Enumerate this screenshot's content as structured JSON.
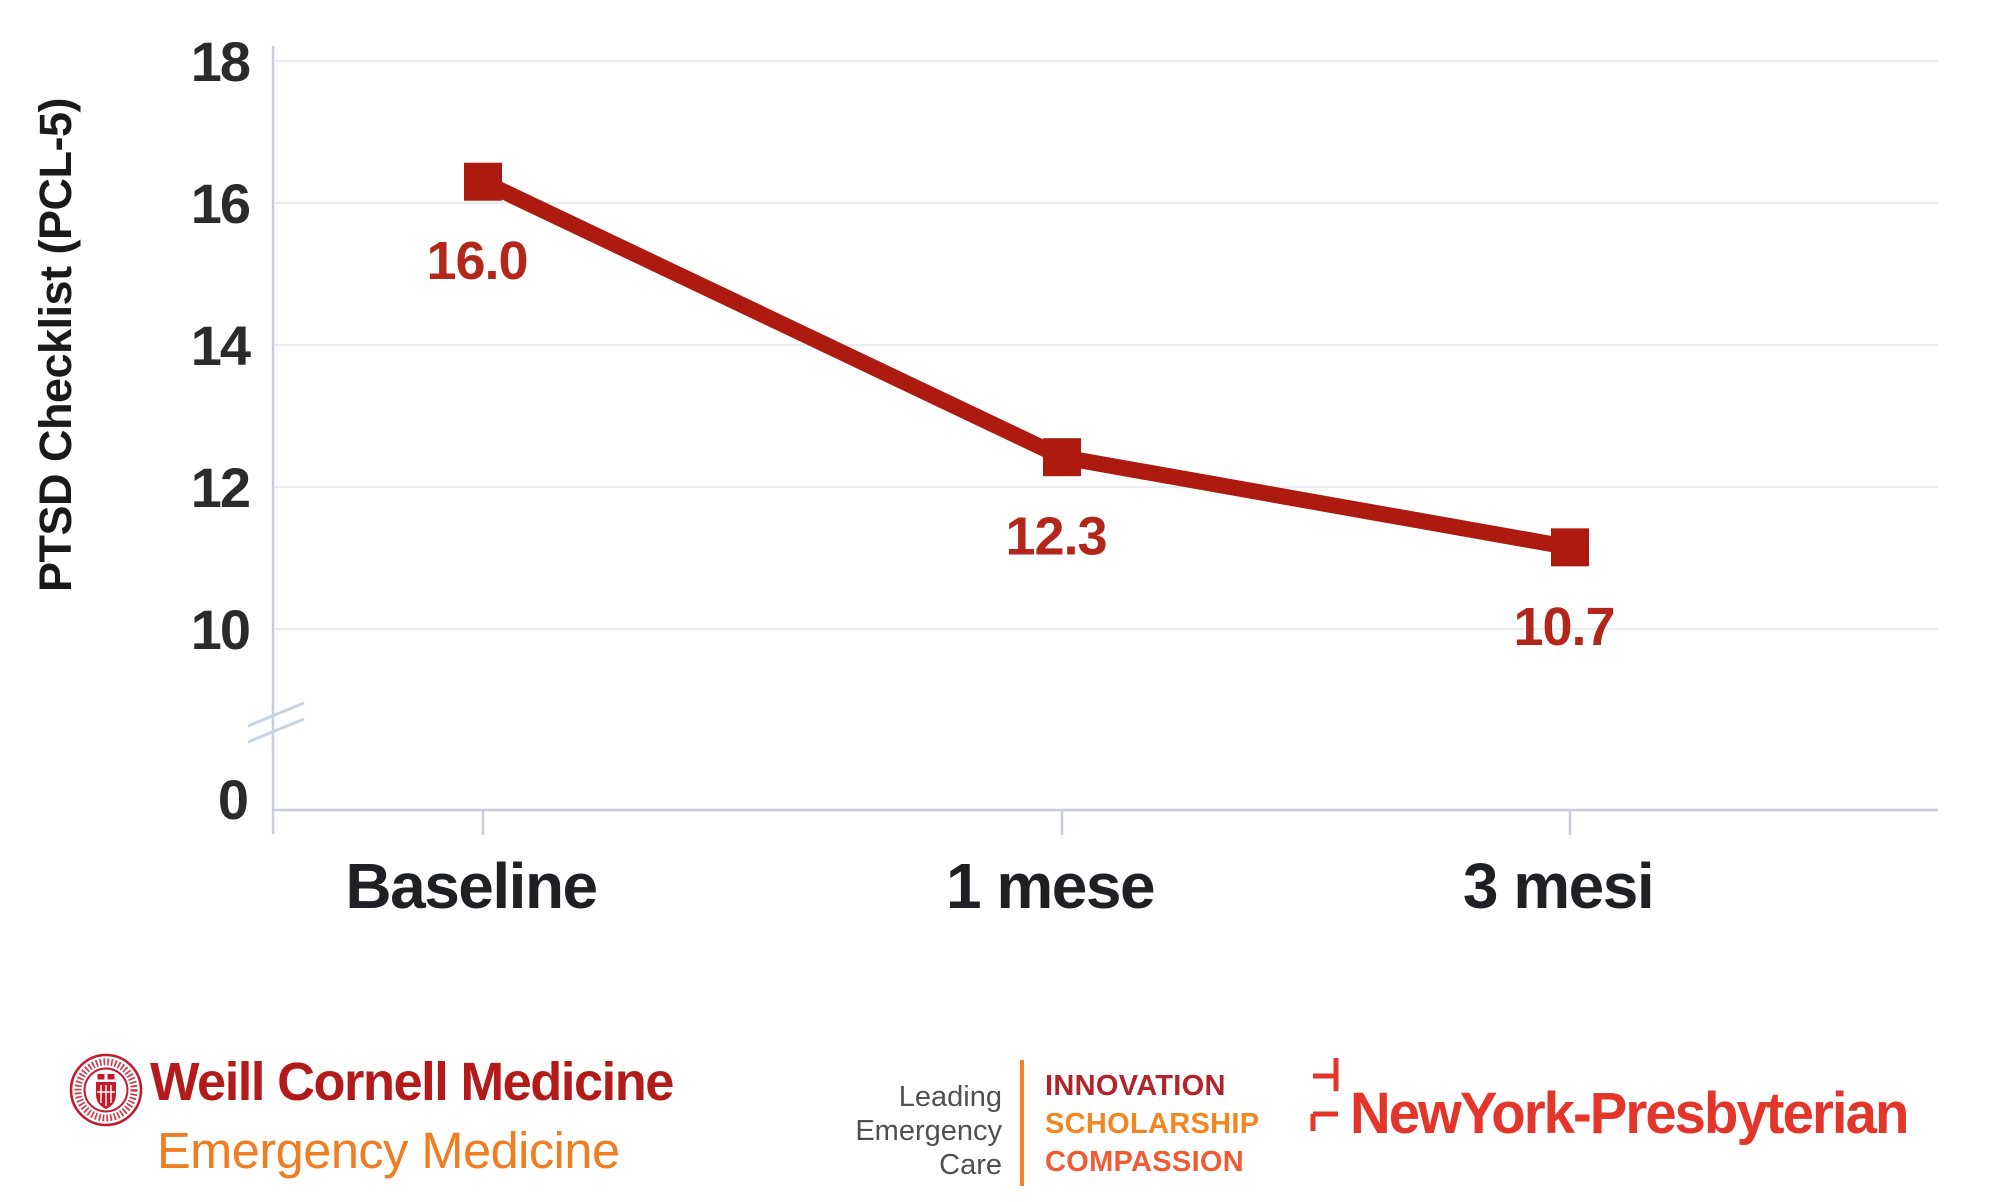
{
  "page": {
    "background": "#ffffff"
  },
  "chart_data": {
    "type": "line",
    "title": "",
    "categories": [
      "Baseline",
      "1 mese",
      "3 mesi"
    ],
    "values": [
      16.0,
      12.3,
      10.7
    ],
    "point_labels": [
      "16.0",
      "12.3",
      "10.7"
    ],
    "ylabel": "PTSD Checklist (PCL-5)",
    "yticks_main": [
      18,
      16,
      14,
      12,
      10
    ],
    "ytick_labels": [
      "18",
      "16",
      "14",
      "12",
      "10"
    ],
    "zero_tick_label": "0",
    "axis_break": true,
    "ylim": [
      0,
      18
    ],
    "grid": "horizontal",
    "legend": "none",
    "colors": {
      "line": "#ad1a0f",
      "marker": "#ad1a0f",
      "point_label": "#b3261c",
      "grid": "#e9edf2",
      "axis": "#c7ced9",
      "break_mark": "#c9d3df",
      "tick_text": "#2b2b2b",
      "category_text": "#1f2023"
    }
  },
  "footer": {
    "wcm": {
      "title": "Weill Cornell Medicine",
      "subtitle": "Emergency Medicine",
      "title_color": "#b31b1b",
      "subtitle_color": "#ef7d22",
      "seal_color": "#c41a2b"
    },
    "tagline": {
      "lines": [
        "Leading",
        "Emergency",
        "Care"
      ],
      "color": "#4f5052"
    },
    "pillars": {
      "divider_color": "#f58025",
      "items": [
        {
          "label": "INNOVATION",
          "color": "#b2242a"
        },
        {
          "label": "SCHOLARSHIP",
          "color": "#f28620"
        },
        {
          "label": "COMPASSION",
          "color": "#ef5b35"
        }
      ]
    },
    "nyp": {
      "name": "NewYork-Presbyterian",
      "color": "#e4352b"
    }
  }
}
